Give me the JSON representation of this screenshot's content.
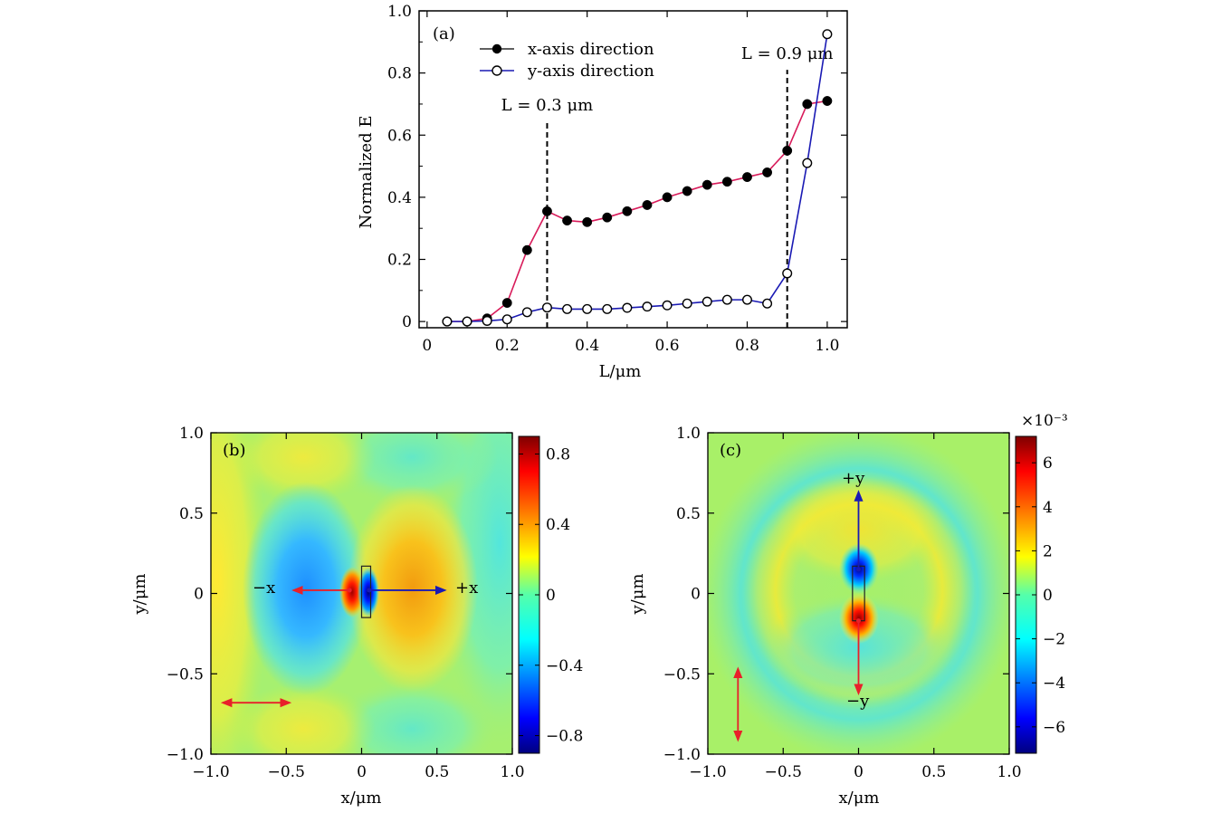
{
  "chart_data": [
    {
      "id": "a",
      "type": "line",
      "panel_label": "(a)",
      "xlabel": "L/μm",
      "ylabel": "Normalized E",
      "xlim": [
        -0.02,
        1.05
      ],
      "ylim": [
        -0.02,
        1.0
      ],
      "xticks": [
        "0",
        "0.2",
        "0.4",
        "0.6",
        "0.8",
        "1.0"
      ],
      "yticks": [
        "0",
        "0.2",
        "0.4",
        "0.6",
        "0.8",
        "1.0"
      ],
      "x": [
        0.05,
        0.1,
        0.15,
        0.2,
        0.25,
        0.3,
        0.35,
        0.4,
        0.45,
        0.5,
        0.55,
        0.6,
        0.65,
        0.7,
        0.75,
        0.8,
        0.85,
        0.9,
        0.95,
        1.0
      ],
      "series": [
        {
          "name": "x-axis direction",
          "color": "#d81b5a",
          "marker": "filled-circle",
          "values": [
            0.0,
            0.0,
            0.01,
            0.06,
            0.23,
            0.355,
            0.325,
            0.32,
            0.335,
            0.355,
            0.375,
            0.4,
            0.42,
            0.44,
            0.45,
            0.465,
            0.48,
            0.55,
            0.7,
            0.71
          ]
        },
        {
          "name": "y-axis direction",
          "color": "#1a1ab4",
          "marker": "open-circle",
          "values": [
            0.0,
            0.0,
            0.002,
            0.007,
            0.03,
            0.045,
            0.04,
            0.04,
            0.04,
            0.044,
            0.048,
            0.052,
            0.058,
            0.064,
            0.07,
            0.07,
            0.058,
            0.155,
            0.51,
            0.925
          ]
        }
      ],
      "markers": [
        {
          "x": 0.3,
          "label": "L = 0.3 μm"
        },
        {
          "x": 0.9,
          "label": "L = 0.9 μm"
        }
      ],
      "legend": "top-left"
    },
    {
      "id": "b",
      "type": "heatmap",
      "panel_label": "(b)",
      "xlabel": "x/μm",
      "ylabel": "y/μm",
      "xlim": [
        -1.0,
        1.0
      ],
      "ylim": [
        -1.0,
        1.0
      ],
      "xticks": [
        "−1.0",
        "−0.5",
        "0",
        "0.5",
        "1.0"
      ],
      "yticks": [
        "1.0",
        "0.5",
        "0",
        "−0.5",
        "−1.0"
      ],
      "colorbar_range": [
        -0.9,
        0.9
      ],
      "colorbar_ticks": [
        "0.8",
        "0.4",
        "0",
        "−0.4",
        "−0.8"
      ],
      "colorbar_tick_values": [
        0.8,
        0.4,
        0,
        -0.4,
        -0.8
      ],
      "annotations": {
        "plus": "+x",
        "minus": "−x"
      },
      "rod": {
        "x": [
          0.0,
          0.06
        ],
        "y": [
          -0.15,
          0.17
        ]
      },
      "arrows": [
        {
          "from": [
            0.05,
            0.02
          ],
          "to": [
            0.55,
            0.02
          ],
          "color": "#1a1ab4"
        },
        {
          "from": [
            -0.08,
            0.02
          ],
          "to": [
            -0.45,
            0.02
          ],
          "color": "#e8202a"
        },
        {
          "from": [
            -0.92,
            -0.68
          ],
          "to": [
            -0.48,
            -0.68
          ],
          "color": "#e8202a",
          "double": true
        }
      ]
    },
    {
      "id": "c",
      "type": "heatmap",
      "panel_label": "(c)",
      "xlabel": "x/μm",
      "ylabel": "y/μm",
      "xlim": [
        -1.0,
        1.0
      ],
      "ylim": [
        -1.0,
        1.0
      ],
      "xticks": [
        "−1.0",
        "−0.5",
        "0",
        "0.5",
        "1.0"
      ],
      "yticks": [
        "1.0",
        "0.5",
        "0",
        "−0.5",
        "−1.0"
      ],
      "colorbar_range": [
        -7.2,
        7.2
      ],
      "colorbar_exponent": "×10⁻³",
      "colorbar_ticks": [
        "6",
        "4",
        "2",
        "0",
        "−2",
        "−4",
        "−6"
      ],
      "colorbar_tick_values": [
        6,
        4,
        2,
        0,
        -2,
        -4,
        -6
      ],
      "annotations": {
        "plus": "+y",
        "minus": "−y"
      },
      "rod": {
        "x": [
          -0.04,
          0.04
        ],
        "y": [
          -0.17,
          0.17
        ]
      },
      "arrows": [
        {
          "from": [
            0.0,
            0.15
          ],
          "to": [
            0.0,
            0.63
          ],
          "color": "#1a1ab4"
        },
        {
          "from": [
            0.0,
            -0.17
          ],
          "to": [
            0.0,
            -0.62
          ],
          "color": "#e8202a"
        },
        {
          "from": [
            -0.8,
            -0.47
          ],
          "to": [
            -0.8,
            -0.91
          ],
          "color": "#e8202a",
          "double": true
        }
      ]
    }
  ]
}
